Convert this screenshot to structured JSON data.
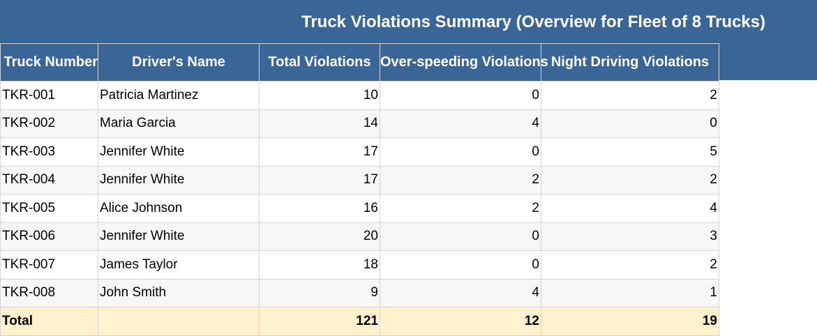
{
  "title": "Truck Violations Summary (Overview for Fleet of 8 Trucks)",
  "columns": [
    "Truck Number",
    "Driver's Name",
    "Total Violations",
    "Over-speeding Violations",
    "Night Driving Violations"
  ],
  "rows": [
    {
      "truck": "TKR-001",
      "driver": "Patricia Martinez",
      "total": "10",
      "speeding": "0",
      "night": "2"
    },
    {
      "truck": "TKR-002",
      "driver": "Maria Garcia",
      "total": "14",
      "speeding": "4",
      "night": "0"
    },
    {
      "truck": "TKR-003",
      "driver": "Jennifer White",
      "total": "17",
      "speeding": "0",
      "night": "5"
    },
    {
      "truck": "TKR-004",
      "driver": "Jennifer White",
      "total": "17",
      "speeding": "2",
      "night": "2"
    },
    {
      "truck": "TKR-005",
      "driver": "Alice Johnson",
      "total": "16",
      "speeding": "2",
      "night": "4"
    },
    {
      "truck": "TKR-006",
      "driver": "Jennifer White",
      "total": "20",
      "speeding": "0",
      "night": "3"
    },
    {
      "truck": "TKR-007",
      "driver": "James Taylor",
      "total": "18",
      "speeding": "0",
      "night": "2"
    },
    {
      "truck": "TKR-008",
      "driver": "John Smith",
      "total": "9",
      "speeding": "4",
      "night": "1"
    }
  ],
  "total": {
    "label": "Total",
    "driver": "",
    "total": "121",
    "speeding": "12",
    "night": "19"
  }
}
